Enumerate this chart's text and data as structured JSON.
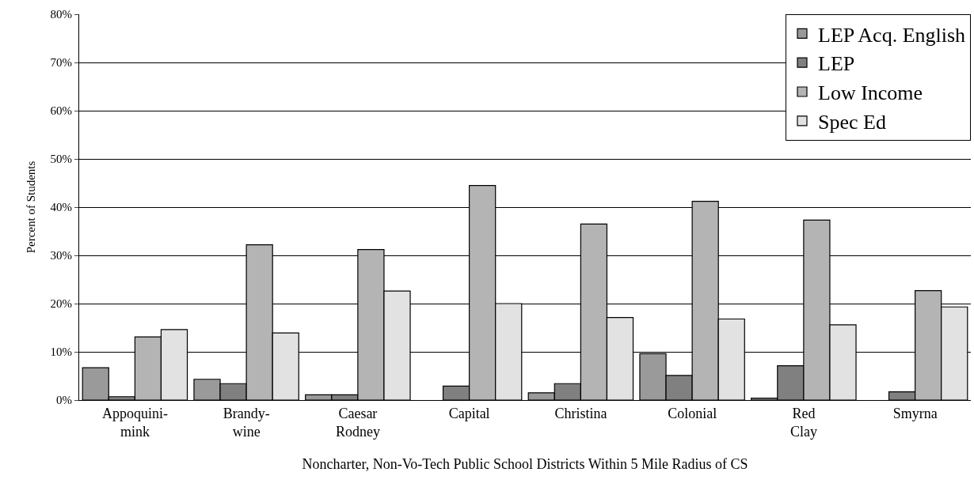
{
  "chart_data": {
    "type": "bar",
    "xlabel": "Noncharter, Non-Vo-Tech Public School Districts Within 5 Mile Radius of CS",
    "ylabel": "Percent of Students",
    "categories": [
      "Appoquini-\nmink",
      "Brandy-\nwine",
      "Caesar\nRodney",
      "Capital",
      "Christina",
      "Colonial",
      "Red\nClay",
      "Smyrna"
    ],
    "series": [
      {
        "name": "LEP Acq. English",
        "color": "#9a9a9a",
        "values": [
          6.7,
          4.3,
          1.1,
          null,
          1.5,
          9.6,
          0.4,
          null
        ]
      },
      {
        "name": "LEP",
        "color": "#808080",
        "values": [
          0.7,
          3.4,
          1.1,
          2.9,
          3.4,
          5.1,
          7.1,
          1.7
        ]
      },
      {
        "name": "Low Income",
        "color": "#b4b4b4",
        "values": [
          13.1,
          32.2,
          31.2,
          44.5,
          36.5,
          41.2,
          37.3,
          22.7
        ]
      },
      {
        "name": "Spec Ed",
        "color": "#e2e2e2",
        "values": [
          14.6,
          13.9,
          22.6,
          20.0,
          17.1,
          16.8,
          15.6,
          19.3
        ]
      }
    ],
    "ylim": [
      0,
      80
    ],
    "yticks": [
      {
        "value": 0,
        "label": "0%"
      },
      {
        "value": 10,
        "label": "10%"
      },
      {
        "value": 20,
        "label": "20%"
      },
      {
        "value": 30,
        "label": "30%"
      },
      {
        "value": 40,
        "label": "40%"
      },
      {
        "value": 50,
        "label": "50%"
      },
      {
        "value": 60,
        "label": "60%"
      },
      {
        "value": 70,
        "label": "70%"
      },
      {
        "value": 80,
        "label": "80%"
      }
    ],
    "grid": "y",
    "legend": "top right"
  }
}
